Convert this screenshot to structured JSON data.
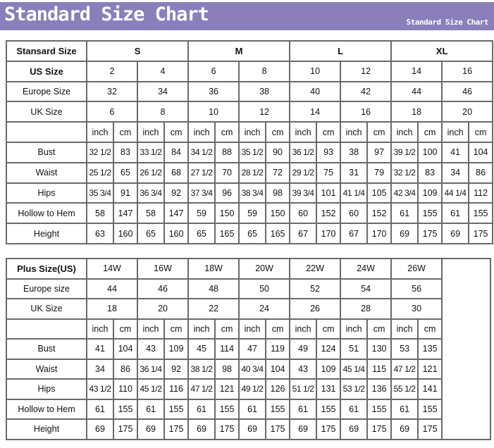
{
  "header": {
    "title": "Standard Size Chart",
    "subtitle": "Standard Size Chart",
    "color": "#8a7fbb"
  },
  "standard": {
    "corner_label": "Stansard Size",
    "groups": [
      "S",
      "M",
      "L",
      "XL"
    ],
    "us_label": "US Size",
    "us": [
      "2",
      "4",
      "6",
      "8",
      "10",
      "12",
      "14",
      "16"
    ],
    "europe_label": "Europe Size",
    "europe": [
      "32",
      "34",
      "36",
      "38",
      "40",
      "42",
      "44",
      "46"
    ],
    "uk_label": "UK Size",
    "uk": [
      "6",
      "8",
      "10",
      "12",
      "14",
      "16",
      "18",
      "20"
    ],
    "units": [
      "inch",
      "cm"
    ],
    "rows": [
      {
        "label": "Bust",
        "values": [
          "32 1/2",
          "83",
          "33 1/2",
          "84",
          "34 1/2",
          "88",
          "35 1/2",
          "90",
          "36 1/2",
          "93",
          "38",
          "97",
          "39 1/2",
          "100",
          "41",
          "104"
        ]
      },
      {
        "label": "Waist",
        "values": [
          "25 1/2",
          "65",
          "26 1/2",
          "68",
          "27 1/2",
          "70",
          "28 1/2",
          "72",
          "29 1/2",
          "75",
          "31",
          "79",
          "32 1/2",
          "83",
          "34",
          "86"
        ]
      },
      {
        "label": "Hips",
        "values": [
          "35 3/4",
          "91",
          "36 3/4",
          "92",
          "37 3/4",
          "96",
          "38 3/4",
          "98",
          "39 3/4",
          "101",
          "41 1/4",
          "105",
          "42 3/4",
          "109",
          "44 1/4",
          "112"
        ]
      },
      {
        "label": "Hollow to Hem",
        "values": [
          "58",
          "147",
          "58",
          "147",
          "59",
          "150",
          "59",
          "150",
          "60",
          "152",
          "60",
          "152",
          "61",
          "155",
          "61",
          "155"
        ]
      },
      {
        "label": "Height",
        "values": [
          "63",
          "160",
          "65",
          "160",
          "65",
          "165",
          "65",
          "165",
          "67",
          "170",
          "67",
          "170",
          "69",
          "175",
          "69",
          "175"
        ]
      }
    ]
  },
  "plus": {
    "corner_label": "Plus Size(US)",
    "sizes": [
      "14W",
      "16W",
      "18W",
      "20W",
      "22W",
      "24W",
      "26W"
    ],
    "europe_label": "Europe size",
    "europe": [
      "44",
      "46",
      "48",
      "50",
      "52",
      "54",
      "56"
    ],
    "uk_label": "UK Size",
    "uk": [
      "18",
      "20",
      "22",
      "24",
      "26",
      "28",
      "30"
    ],
    "units": [
      "inch",
      "cm"
    ],
    "rows": [
      {
        "label": "Bust",
        "values": [
          "41",
          "104",
          "43",
          "109",
          "45",
          "114",
          "47",
          "119",
          "49",
          "124",
          "51",
          "130",
          "53",
          "135"
        ]
      },
      {
        "label": "Waist",
        "values": [
          "34",
          "86",
          "36 1/4",
          "92",
          "38 1/2",
          "98",
          "40 3/4",
          "104",
          "43",
          "109",
          "45 1/4",
          "115",
          "47 1/2",
          "121"
        ]
      },
      {
        "label": "Hips",
        "values": [
          "43 1/2",
          "110",
          "45 1/2",
          "116",
          "47 1/2",
          "121",
          "49 1/2",
          "126",
          "51 1/2",
          "131",
          "53 1/2",
          "136",
          "55 1/2",
          "141"
        ]
      },
      {
        "label": "Hollow to Hem",
        "values": [
          "61",
          "155",
          "61",
          "155",
          "61",
          "155",
          "61",
          "155",
          "61",
          "155",
          "61",
          "155",
          "61",
          "155"
        ]
      },
      {
        "label": "Height",
        "values": [
          "69",
          "175",
          "69",
          "175",
          "69",
          "175",
          "69",
          "175",
          "69",
          "175",
          "69",
          "175",
          "69",
          "175"
        ]
      }
    ]
  }
}
